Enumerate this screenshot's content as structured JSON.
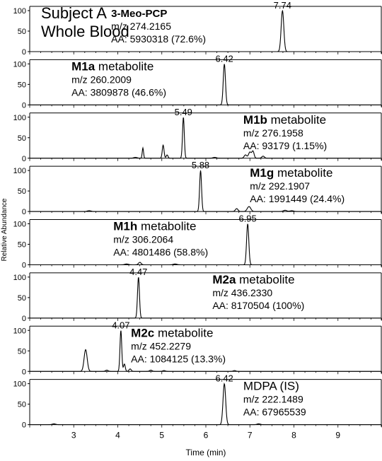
{
  "figure": {
    "subject_line1": "Subject A",
    "subject_line2": "Whole Blood",
    "ylabel": "Relative Abundance",
    "xlabel": "Time (min)"
  },
  "chart_data": {
    "type": "line",
    "xlabel": "Time (min)",
    "ylabel": "Relative Abundance",
    "xlim": [
      2.0,
      10.0
    ],
    "x_ticks": [
      "3",
      "4",
      "5",
      "6",
      "7",
      "8",
      "9"
    ],
    "y_ticks": [
      "0",
      "50",
      "100"
    ],
    "ylim": [
      0,
      100
    ],
    "grid": false,
    "panels": [
      {
        "bold": "3-Meo-PCP",
        "name": "",
        "mz": "m/z 274.2165",
        "aa": "AA: 5930318 (72.6%)",
        "peak_label": "7.74",
        "label_x": 7.74,
        "peaks": [
          [
            7.74,
            100,
            0.03
          ]
        ]
      },
      {
        "bold": "M1a",
        "name": " metabolite",
        "mz": "m/z 260.2009",
        "aa": "AA: 3809878 (46.6%)",
        "peak_label": "6.42",
        "label_x": 6.42,
        "peaks": [
          [
            6.42,
            100,
            0.025
          ]
        ]
      },
      {
        "bold": "M1b",
        "name": " metabolite",
        "mz": "m/z 276.1958",
        "aa": "AA: 93179 (1.15%)",
        "peak_label": "5.49",
        "label_x": 5.49,
        "peaks": [
          [
            5.49,
            100,
            0.02
          ],
          [
            4.57,
            25,
            0.015
          ],
          [
            5.03,
            32,
            0.02
          ],
          [
            5.12,
            8,
            0.02
          ],
          [
            6.9,
            8,
            0.03
          ],
          [
            7.0,
            15,
            0.03
          ],
          [
            7.07,
            17,
            0.025
          ],
          [
            7.3,
            5,
            0.03
          ],
          [
            6.2,
            2,
            0.04
          ],
          [
            4.4,
            2,
            0.04
          ]
        ]
      },
      {
        "bold": "M1g",
        "name": " metabolite",
        "mz": "m/z 292.1907",
        "aa": "AA: 1991449 (24.4%)",
        "peak_label": "5.88",
        "label_x": 5.88,
        "peaks": [
          [
            5.88,
            100,
            0.022
          ],
          [
            6.7,
            7,
            0.03
          ],
          [
            6.98,
            12,
            0.04
          ],
          [
            7.8,
            3,
            0.04
          ],
          [
            3.35,
            2,
            0.04
          ],
          [
            7.95,
            2,
            0.04
          ]
        ]
      },
      {
        "bold": "M1h",
        "name": " metabolite",
        "mz": "m/z 306.2064",
        "aa": "AA: 4801486 (58.8%)",
        "peak_label": "6.95",
        "label_x": 6.95,
        "peaks": [
          [
            6.95,
            100,
            0.025
          ],
          [
            4.5,
            6,
            0.03
          ],
          [
            4.2,
            2,
            0.04
          ],
          [
            5.3,
            2,
            0.04
          ]
        ]
      },
      {
        "bold": "M2a",
        "name": " metabolite",
        "mz": "m/z 436.2330",
        "aa": "AA: 8170504 (100%)",
        "peak_label": "4.47",
        "label_x": 4.47,
        "peaks": [
          [
            4.47,
            100,
            0.022
          ]
        ]
      },
      {
        "bold": "M2c",
        "name": " metabolite",
        "mz": "m/z 452.2279",
        "aa": "AA: 1084125 (13.3%)",
        "peak_label": "4.07",
        "label_x": 4.07,
        "peaks": [
          [
            4.07,
            100,
            0.02
          ],
          [
            3.27,
            53,
            0.035
          ],
          [
            4.15,
            18,
            0.02
          ],
          [
            4.28,
            6,
            0.025
          ],
          [
            3.75,
            3,
            0.03
          ],
          [
            4.75,
            3,
            0.03
          ],
          [
            5.05,
            2,
            0.03
          ],
          [
            6.65,
            2,
            0.03
          ]
        ]
      },
      {
        "bold": "",
        "name": "MDPA (IS)",
        "mz": "m/z 222.1489",
        "aa": "AA: 67965539",
        "peak_label": "6.42",
        "label_x": 6.42,
        "peaks": [
          [
            6.42,
            100,
            0.03
          ],
          [
            2.55,
            2,
            0.04
          ],
          [
            7.2,
            2,
            0.04
          ]
        ]
      }
    ]
  }
}
